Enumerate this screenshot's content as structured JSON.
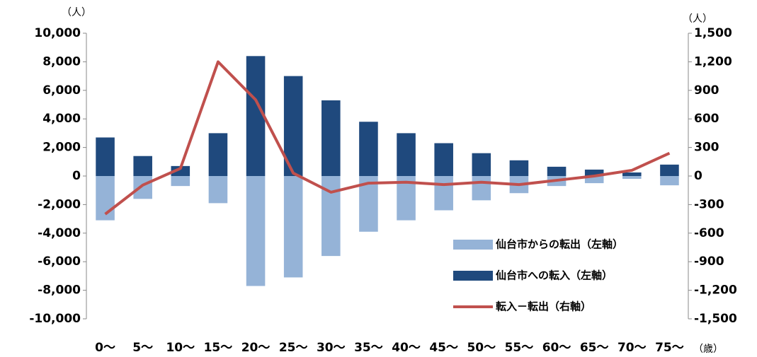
{
  "chart_data": {
    "type": "bar_line",
    "y_unit": "（人）",
    "y2_unit": "（人）",
    "x_unit": "（歳）",
    "categories": [
      "0〜",
      "5〜",
      "10〜",
      "15〜",
      "20〜",
      "25〜",
      "30〜",
      "35〜",
      "40〜",
      "45〜",
      "50〜",
      "55〜",
      "60〜",
      "65〜",
      "70〜",
      "75〜"
    ],
    "ylim": [
      -10000,
      10000
    ],
    "yticks": [
      {
        "value": 10000,
        "label": "10,000"
      },
      {
        "value": 8000,
        "label": "8,000"
      },
      {
        "value": 6000,
        "label": "6,000"
      },
      {
        "value": 4000,
        "label": "4,000"
      },
      {
        "value": 2000,
        "label": "2,000"
      },
      0,
      {
        "value": -2000,
        "label": "-2,000"
      },
      {
        "value": -4000,
        "label": "-4,000"
      },
      {
        "value": -6000,
        "label": "-6,000"
      },
      {
        "value": -8000,
        "label": "-8,000"
      },
      {
        "value": -10000,
        "label": "-10,000"
      }
    ],
    "y2lim": [
      -1500,
      1500
    ],
    "y2ticks": [
      {
        "value": 1500,
        "label": "1,500"
      },
      {
        "value": 1200,
        "label": "1,200"
      },
      900,
      600,
      300,
      0,
      -300,
      -600,
      -900,
      {
        "value": -1200,
        "label": "-1,200"
      },
      {
        "value": -1500,
        "label": "-1,500"
      }
    ],
    "series": [
      {
        "name": "仙台市からの転出（左軸）",
        "type": "bar",
        "color": "#95b3d7",
        "values": [
          -3100,
          -1600,
          -700,
          -1900,
          -7700,
          -7100,
          -5600,
          -3900,
          -3100,
          -2400,
          -1700,
          -1200,
          -700,
          -500,
          -200,
          -650
        ]
      },
      {
        "name": "仙台市への転入（左軸）",
        "type": "bar",
        "color": "#1f497d",
        "values": [
          2700,
          1400,
          700,
          3000,
          8400,
          7000,
          5300,
          3800,
          3000,
          2300,
          1600,
          1100,
          650,
          450,
          250,
          800
        ]
      },
      {
        "name": "転入－転出（右軸）",
        "type": "line",
        "axis": "y2",
        "color": "#c0504d",
        "values": [
          -400,
          -95,
          80,
          1200,
          800,
          30,
          -170,
          -75,
          -65,
          -90,
          -65,
          -90,
          -45,
          0,
          60,
          240
        ]
      }
    ]
  }
}
